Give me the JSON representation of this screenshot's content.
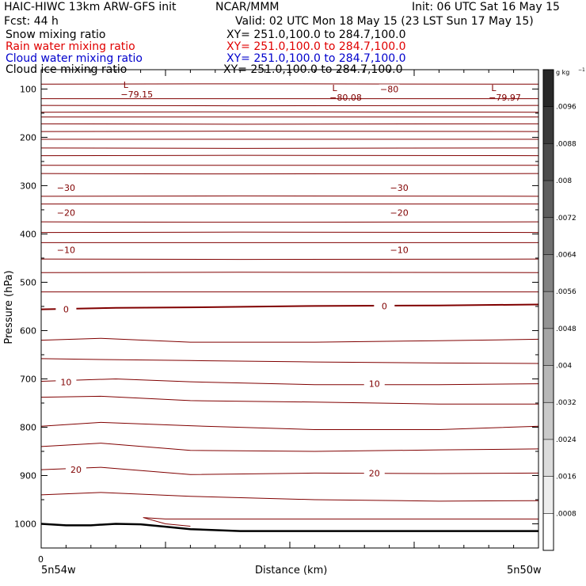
{
  "header": {
    "title_left": "HAIC-HIWC 13km ARW-GFS init",
    "org": "NCAR/MMM",
    "init": "Init: 06 UTC Sat 16 May 15",
    "fcst": "Fcst:   44 h",
    "valid": "Valid: 02 UTC Mon 18 May 15 (23 LST Sun 17 May 15)",
    "fields": [
      {
        "name": "Snow mixing ratio",
        "xy": "XY=  251.0,100.0 to 284.7,100.0",
        "color": "#000000"
      },
      {
        "name": "Rain water mixing ratio",
        "xy": "XY=  251.0,100.0 to 284.7,100.0",
        "color": "#e00000"
      },
      {
        "name": "Cloud water mixing ratio",
        "xy": "XY=  251.0,100.0 to 284.7,100.0",
        "color": "#0000cc"
      },
      {
        "name": "Cloud ice mixing ratio",
        "xy": "XY=  251.0,100.0 to 284.7,100.0",
        "color": "#000000"
      }
    ]
  },
  "colorbar": {
    "unit": "g kg",
    "unit_exp": "−1",
    "labels": [
      ".0096",
      ".0088",
      ".008",
      ".0072",
      ".0064",
      ".0056",
      ".0048",
      ".004",
      ".0032",
      ".0024",
      ".0016",
      ".0008"
    ]
  },
  "chart_data": {
    "type": "line",
    "xlabel": "Distance (km)",
    "ylabel": "Pressure (hPa)",
    "x_tick_label": "0",
    "x_end_labels": [
      "5n54w",
      "5n50w"
    ],
    "y_ticks": [
      100,
      200,
      300,
      400,
      500,
      600,
      700,
      800,
      900,
      1000
    ],
    "ylim": [
      1050,
      60
    ],
    "contour_color": "#800000",
    "isotherm_labels": [
      {
        "text": "−30",
        "x": 5,
        "p": 304
      },
      {
        "text": "−30",
        "x": 72,
        "p": 304
      },
      {
        "text": "−20",
        "x": 5,
        "p": 356
      },
      {
        "text": "−20",
        "x": 72,
        "p": 356
      },
      {
        "text": "−10",
        "x": 5,
        "p": 433
      },
      {
        "text": "−10",
        "x": 72,
        "p": 433
      },
      {
        "text": "0",
        "x": 5,
        "p": 556
      },
      {
        "text": "0",
        "x": 69,
        "p": 549
      },
      {
        "text": "10",
        "x": 5,
        "p": 707
      },
      {
        "text": "10",
        "x": 67,
        "p": 710
      },
      {
        "text": "20",
        "x": 7,
        "p": 888
      },
      {
        "text": "20",
        "x": 67,
        "p": 895
      },
      {
        "text": "−80",
        "x": 70,
        "p": 100
      }
    ],
    "lows": [
      {
        "label": "L",
        "value": "−79.15",
        "x": 17,
        "p": 98
      },
      {
        "label": "L",
        "value": "−80.08",
        "x": 59,
        "p": 104
      },
      {
        "label": "L",
        "value": "−79.97",
        "x": 91,
        "p": 104
      }
    ],
    "surface_pressure": {
      "x": [
        0,
        5,
        10,
        15,
        20,
        25,
        30,
        40,
        60,
        80,
        100
      ],
      "p": [
        1000,
        1003,
        1003,
        1000,
        1001,
        1006,
        1011,
        1015,
        1015,
        1015,
        1015
      ]
    }
  }
}
